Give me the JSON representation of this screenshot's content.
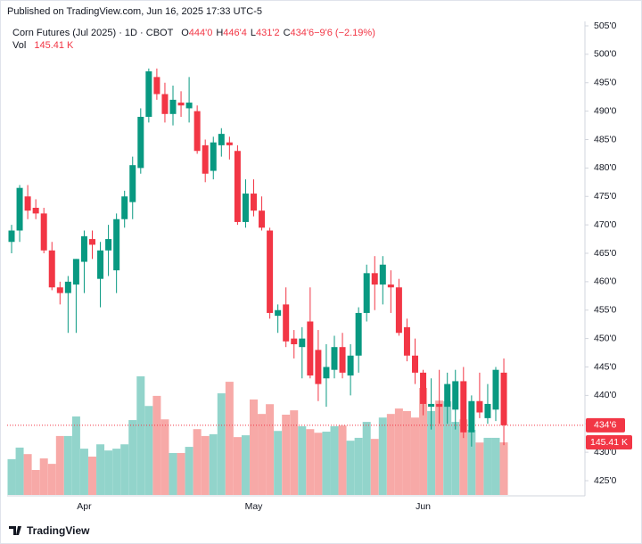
{
  "published": "Published on TradingView.com, Jun 16, 2025 17:33 UTC-5",
  "footer": "TradingView",
  "chart_data": {
    "type": "candlestick",
    "title": "Corn Futures (Jul 2025) · 1D · CBOT",
    "legend": [
      {
        "label": "O",
        "value": "444'0"
      },
      {
        "label": "H",
        "value": "446'4"
      },
      {
        "label": "L",
        "value": "431'2"
      },
      {
        "label": "C",
        "value": "434'6"
      },
      {
        "label": "",
        "value": "−9'6 (−2.19%)"
      }
    ],
    "x": [
      null,
      null,
      null,
      null,
      null,
      null,
      null,
      null,
      null,
      "Apr",
      null,
      null,
      null,
      null,
      null,
      null,
      null,
      null,
      null,
      null,
      null,
      null,
      null,
      null,
      null,
      null,
      null,
      null,
      null,
      null,
      "May",
      null,
      null,
      null,
      null,
      null,
      null,
      null,
      null,
      null,
      null,
      null,
      null,
      null,
      null,
      null,
      null,
      null,
      null,
      null,
      null,
      "Jun",
      null,
      null,
      null,
      null,
      null,
      null,
      null,
      null,
      null,
      null
    ],
    "open": [
      467,
      469,
      475,
      473,
      472,
      465.5,
      459,
      458,
      459.5,
      463.5,
      467.5,
      460.5,
      465.5,
      462,
      471,
      474,
      480,
      489,
      496,
      493,
      489.5,
      491.5,
      490.5,
      490,
      484,
      479.5,
      484,
      484.5,
      483,
      470.5,
      475.5,
      472.5,
      469,
      454,
      456,
      450,
      448.5,
      453,
      448,
      443,
      444.5,
      448.5,
      443.5,
      447,
      454.5,
      461.5,
      459.5,
      459.5,
      459,
      452,
      447,
      444,
      438,
      438.5,
      438,
      437.5,
      442.5,
      433.5,
      439,
      436,
      437.5,
      444
    ],
    "high": [
      470,
      477,
      477,
      474.5,
      473,
      467,
      460,
      461,
      464,
      469,
      469,
      467,
      470,
      472,
      476,
      482,
      490.5,
      497.5,
      497.5,
      495,
      494.5,
      493.5,
      496,
      491,
      485,
      485.5,
      487,
      485.5,
      484,
      478,
      478,
      475,
      469.5,
      456,
      459,
      451.5,
      452,
      459,
      451.5,
      449,
      450.5,
      451,
      449,
      455.5,
      463,
      464.5,
      464.5,
      462,
      460.5,
      453.5,
      450,
      444.5,
      443,
      444.5,
      444,
      444.5,
      445,
      440,
      444,
      442,
      445,
      446.5
    ],
    "low": [
      465,
      467,
      471,
      471,
      465,
      458.5,
      456,
      451,
      451,
      458,
      464,
      455.5,
      461,
      458,
      469.5,
      471,
      479,
      488,
      492,
      488,
      487.5,
      489,
      488,
      482.5,
      477.5,
      478,
      482,
      481.5,
      470,
      469.5,
      471.5,
      469,
      453.5,
      451,
      448.5,
      446.5,
      443,
      443,
      439,
      438,
      443,
      443,
      440,
      444,
      453,
      455,
      456,
      454.5,
      450.5,
      446,
      442,
      436.5,
      434,
      435,
      435,
      434,
      432.5,
      431,
      436,
      435,
      435.5,
      431.25
    ],
    "close": [
      469,
      476.5,
      472.5,
      472,
      465.5,
      459,
      458,
      460,
      464,
      468,
      466.5,
      465.5,
      467.5,
      471,
      475,
      480.5,
      489,
      497,
      493,
      489.5,
      492,
      491,
      491.5,
      483,
      479,
      484.5,
      486,
      484,
      470.5,
      475.5,
      472.5,
      469.5,
      454.5,
      455,
      449.5,
      449,
      450,
      443.5,
      442,
      445,
      448.5,
      444,
      447,
      454.5,
      461.5,
      459.5,
      463,
      459,
      451,
      447,
      444,
      438.5,
      438.5,
      438,
      442,
      442.5,
      433.5,
      439,
      437,
      438.5,
      444.5,
      434.75
    ],
    "volume": {
      "name": "Vol",
      "label": "145.41 K",
      "values": [
        99,
        131,
        113,
        69,
        101,
        86,
        163,
        163,
        217,
        128,
        106,
        140,
        123,
        128,
        140,
        207,
        328,
        246,
        274,
        209,
        116,
        116,
        133,
        182,
        163,
        168,
        281,
        313,
        160,
        165,
        264,
        224,
        251,
        177,
        222,
        234,
        190,
        182,
        172,
        175,
        190,
        192,
        150,
        158,
        202,
        155,
        214,
        224,
        239,
        232,
        214,
        296,
        232,
        261,
        259,
        202,
        209,
        180,
        145,
        158,
        158,
        145.41
      ]
    },
    "last_price": {
      "value": 434.75,
      "label": "434'6"
    },
    "ylim": [
      425,
      505
    ],
    "yticks": [
      {
        "value": 425,
        "label": "425'0"
      },
      {
        "value": 430,
        "label": "430'0"
      },
      {
        "value": 435,
        "label": "435'0"
      },
      {
        "value": 440,
        "label": "440'0"
      },
      {
        "value": 445,
        "label": "445'0"
      },
      {
        "value": 450,
        "label": "450'0"
      },
      {
        "value": 455,
        "label": "455'0"
      },
      {
        "value": 460,
        "label": "460'0"
      },
      {
        "value": 465,
        "label": "465'0"
      },
      {
        "value": 470,
        "label": "470'0"
      },
      {
        "value": 475,
        "label": "475'0"
      },
      {
        "value": 480,
        "label": "480'0"
      },
      {
        "value": 485,
        "label": "485'0"
      },
      {
        "value": 490,
        "label": "490'0"
      },
      {
        "value": 495,
        "label": "495'0"
      },
      {
        "value": 500,
        "label": "500'0"
      },
      {
        "value": 505,
        "label": "505'0"
      }
    ],
    "grid": false,
    "up_color": "#089981",
    "down_color": "#f23645",
    "up_volume_color": "#92d4cb",
    "down_volume_color": "#f7a9a7"
  }
}
